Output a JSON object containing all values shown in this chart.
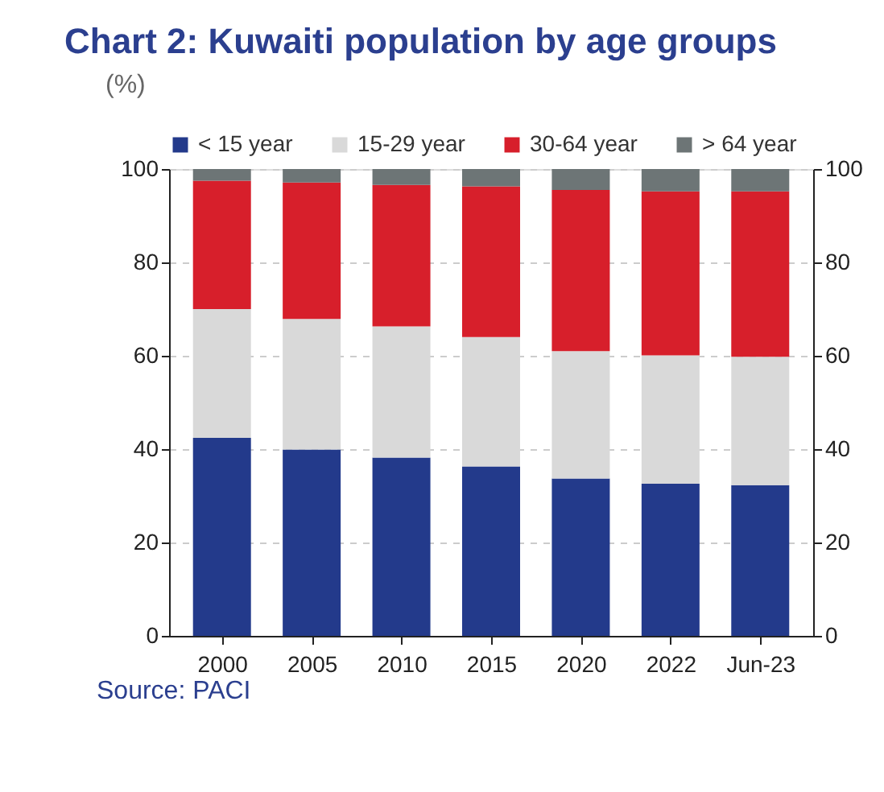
{
  "chart_data": {
    "type": "bar",
    "stacked": true,
    "title": "Chart 2:  Kuwaiti population by age groups",
    "ylabel": "(%)",
    "categories": [
      "2000",
      "2005",
      "2010",
      "2015",
      "2020",
      "2022",
      "Jun-23"
    ],
    "series": [
      {
        "name": "< 15 year",
        "color": "#233a8b",
        "values": [
          42.4,
          39.9,
          38.2,
          36.3,
          33.7,
          32.6,
          32.3
        ]
      },
      {
        "name": "15-29 year",
        "color": "#d9d9d9",
        "values": [
          27.6,
          28.0,
          28.1,
          27.7,
          27.3,
          27.5,
          27.5
        ]
      },
      {
        "name": "30-64 year",
        "color": "#d71f2b",
        "values": [
          27.5,
          29.2,
          30.3,
          32.3,
          34.5,
          35.1,
          35.4
        ]
      },
      {
        "name": "> 64 year",
        "color": "#6d7576",
        "values": [
          2.5,
          2.9,
          3.4,
          3.7,
          4.5,
          4.8,
          4.8
        ]
      }
    ],
    "ylim": [
      0,
      100
    ],
    "yticks": [
      0,
      20,
      40,
      60,
      80,
      100
    ],
    "y2lim": [
      0,
      100
    ],
    "y2ticks": [
      0,
      20,
      40,
      60,
      80,
      100
    ],
    "grid": "y",
    "legend": "top",
    "annotations": [
      "Source: PACI"
    ]
  }
}
